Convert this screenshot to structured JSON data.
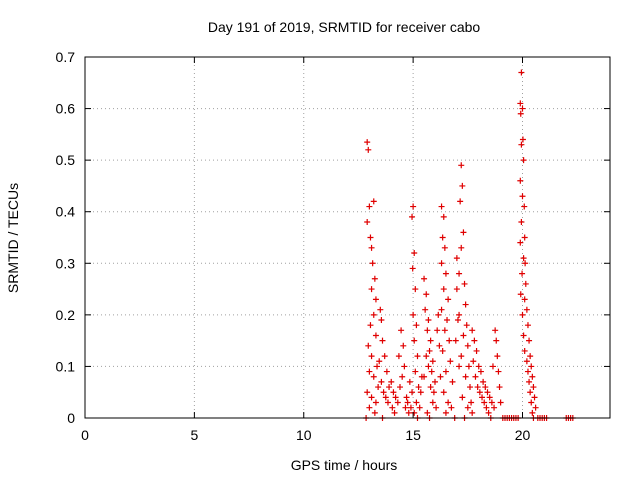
{
  "chart_data": {
    "type": "scatter",
    "title": "Day 191 of 2019, SRMTID for receiver cabo",
    "xlabel": "GPS time / hours",
    "ylabel": "SRMTID / TECUs",
    "xlim": [
      0,
      24
    ],
    "ylim": [
      0,
      0.7
    ],
    "x_ticks": [
      0,
      5,
      10,
      15,
      20
    ],
    "y_ticks": [
      0,
      0.1,
      0.2,
      0.3,
      0.4,
      0.5,
      0.6,
      0.7
    ],
    "x_tick_labels": [
      "0",
      "5",
      "10",
      "15",
      "20"
    ],
    "y_tick_labels": [
      "0",
      "0.1",
      "0.2",
      "0.3",
      "0.4",
      "0.5",
      "0.6",
      "0.7"
    ],
    "grid": true,
    "marker": "plus",
    "color": "#e00000",
    "series": [
      {
        "name": "SRMTID",
        "points": [
          [
            12.9,
            0.535
          ],
          [
            12.95,
            0.52
          ],
          [
            13.0,
            0.41
          ],
          [
            12.9,
            0.38
          ],
          [
            13.05,
            0.35
          ],
          [
            13.1,
            0.33
          ],
          [
            13.2,
            0.42
          ],
          [
            13.15,
            0.3
          ],
          [
            13.25,
            0.27
          ],
          [
            13.1,
            0.25
          ],
          [
            13.3,
            0.23
          ],
          [
            13.2,
            0.2
          ],
          [
            13.05,
            0.18
          ],
          [
            13.3,
            0.16
          ],
          [
            12.95,
            0.14
          ],
          [
            13.1,
            0.12
          ],
          [
            13.35,
            0.1
          ],
          [
            13.0,
            0.09
          ],
          [
            13.2,
            0.08
          ],
          [
            13.4,
            0.06
          ],
          [
            12.9,
            0.05
          ],
          [
            13.1,
            0.04
          ],
          [
            13.3,
            0.03
          ],
          [
            13.0,
            0.02
          ],
          [
            13.25,
            0.01
          ],
          [
            12.85,
            0.0
          ],
          [
            13.5,
            0.21
          ],
          [
            13.55,
            0.19
          ],
          [
            13.6,
            0.15
          ],
          [
            13.7,
            0.12
          ],
          [
            13.45,
            0.11
          ],
          [
            13.8,
            0.09
          ],
          [
            13.55,
            0.07
          ],
          [
            13.9,
            0.06
          ],
          [
            13.65,
            0.05
          ],
          [
            13.75,
            0.04
          ],
          [
            14.0,
            0.07
          ],
          [
            14.1,
            0.05
          ],
          [
            14.2,
            0.04
          ],
          [
            13.85,
            0.03
          ],
          [
            14.05,
            0.02
          ],
          [
            14.3,
            0.03
          ],
          [
            14.15,
            0.01
          ],
          [
            13.6,
            0.0
          ],
          [
            14.4,
            0.06
          ],
          [
            14.5,
            0.08
          ],
          [
            14.35,
            0.12
          ],
          [
            14.45,
            0.17
          ],
          [
            14.55,
            0.14
          ],
          [
            14.6,
            0.1
          ],
          [
            14.7,
            0.04
          ],
          [
            14.65,
            0.02
          ],
          [
            14.8,
            0.01
          ],
          [
            14.75,
            0.03
          ],
          [
            14.9,
            0.02
          ],
          [
            14.95,
            0.05
          ],
          [
            14.85,
            0.07
          ],
          [
            15.0,
            0.41
          ],
          [
            14.95,
            0.39
          ],
          [
            15.05,
            0.32
          ],
          [
            14.98,
            0.29
          ],
          [
            15.1,
            0.25
          ],
          [
            15.0,
            0.2
          ],
          [
            15.15,
            0.18
          ],
          [
            15.05,
            0.15
          ],
          [
            15.2,
            0.12
          ],
          [
            15.1,
            0.09
          ],
          [
            15.25,
            0.06
          ],
          [
            15.15,
            0.03
          ],
          [
            15.05,
            0.01
          ],
          [
            15.3,
            0.02
          ],
          [
            15.2,
            0.0
          ],
          [
            15.35,
            0.05
          ],
          [
            15.4,
            0.08
          ],
          [
            15.5,
            0.27
          ],
          [
            15.6,
            0.24
          ],
          [
            15.55,
            0.21
          ],
          [
            15.7,
            0.19
          ],
          [
            15.65,
            0.17
          ],
          [
            15.8,
            0.15
          ],
          [
            15.75,
            0.13
          ],
          [
            15.9,
            0.11
          ],
          [
            15.85,
            0.09
          ],
          [
            16.0,
            0.07
          ],
          [
            15.95,
            0.05
          ],
          [
            15.6,
            0.12
          ],
          [
            15.7,
            0.1
          ],
          [
            15.5,
            0.08
          ],
          [
            15.8,
            0.06
          ],
          [
            15.9,
            0.03
          ],
          [
            16.05,
            0.02
          ],
          [
            15.65,
            0.01
          ],
          [
            15.75,
            0.0
          ],
          [
            16.3,
            0.41
          ],
          [
            16.4,
            0.39
          ],
          [
            16.35,
            0.35
          ],
          [
            16.45,
            0.33
          ],
          [
            16.3,
            0.3
          ],
          [
            16.5,
            0.28
          ],
          [
            16.4,
            0.25
          ],
          [
            16.6,
            0.23
          ],
          [
            16.3,
            0.21
          ],
          [
            16.55,
            0.19
          ],
          [
            16.45,
            0.17
          ],
          [
            16.65,
            0.15
          ],
          [
            16.35,
            0.13
          ],
          [
            16.7,
            0.11
          ],
          [
            16.5,
            0.09
          ],
          [
            16.8,
            0.07
          ],
          [
            16.4,
            0.05
          ],
          [
            16.6,
            0.03
          ],
          [
            16.75,
            0.02
          ],
          [
            16.5,
            0.01
          ],
          [
            16.9,
            0.0
          ],
          [
            16.2,
            0.14
          ],
          [
            16.1,
            0.17
          ],
          [
            16.15,
            0.2
          ],
          [
            16.25,
            0.08
          ],
          [
            17.0,
            0.31
          ],
          [
            17.1,
            0.28
          ],
          [
            17.2,
            0.49
          ],
          [
            17.25,
            0.45
          ],
          [
            17.15,
            0.42
          ],
          [
            17.3,
            0.36
          ],
          [
            17.2,
            0.33
          ],
          [
            17.35,
            0.26
          ],
          [
            17.4,
            0.22
          ],
          [
            17.1,
            0.2
          ],
          [
            17.45,
            0.18
          ],
          [
            17.3,
            0.16
          ],
          [
            17.5,
            0.14
          ],
          [
            17.2,
            0.12
          ],
          [
            17.55,
            0.1
          ],
          [
            17.4,
            0.08
          ],
          [
            17.6,
            0.06
          ],
          [
            17.25,
            0.04
          ],
          [
            17.65,
            0.03
          ],
          [
            17.5,
            0.02
          ],
          [
            17.7,
            0.01
          ],
          [
            17.35,
            0.0
          ],
          [
            17.0,
            0.25
          ],
          [
            17.05,
            0.19
          ],
          [
            16.95,
            0.15
          ],
          [
            17.1,
            0.1
          ],
          [
            17.7,
            0.17
          ],
          [
            17.8,
            0.15
          ],
          [
            17.9,
            0.13
          ],
          [
            17.75,
            0.11
          ],
          [
            18.0,
            0.1
          ],
          [
            17.85,
            0.08
          ],
          [
            18.1,
            0.09
          ],
          [
            17.95,
            0.06
          ],
          [
            18.2,
            0.07
          ],
          [
            18.05,
            0.05
          ],
          [
            18.3,
            0.06
          ],
          [
            18.15,
            0.04
          ],
          [
            18.4,
            0.05
          ],
          [
            18.25,
            0.03
          ],
          [
            18.5,
            0.04
          ],
          [
            18.35,
            0.02
          ],
          [
            18.6,
            0.03
          ],
          [
            18.45,
            0.01
          ],
          [
            18.7,
            0.02
          ],
          [
            18.55,
            0.0
          ],
          [
            18.8,
            0.15
          ],
          [
            18.75,
            0.17
          ],
          [
            18.85,
            0.12
          ],
          [
            18.9,
            0.09
          ],
          [
            18.65,
            0.1
          ],
          [
            18.95,
            0.06
          ],
          [
            19.0,
            0.03
          ],
          [
            19.1,
            0.0
          ],
          [
            19.2,
            0.0
          ],
          [
            19.3,
            0.0
          ],
          [
            19.4,
            0.0
          ],
          [
            19.5,
            0.0
          ],
          [
            19.6,
            0.0
          ],
          [
            19.7,
            0.0
          ],
          [
            19.8,
            0.0
          ],
          [
            19.9,
            0.61
          ],
          [
            19.95,
            0.67
          ],
          [
            20.0,
            0.6
          ],
          [
            19.92,
            0.59
          ],
          [
            20.02,
            0.54
          ],
          [
            19.95,
            0.53
          ],
          [
            20.05,
            0.5
          ],
          [
            19.9,
            0.46
          ],
          [
            20.0,
            0.43
          ],
          [
            20.08,
            0.41
          ],
          [
            19.95,
            0.38
          ],
          [
            20.1,
            0.35
          ],
          [
            19.9,
            0.34
          ],
          [
            20.05,
            0.31
          ],
          [
            20.12,
            0.3
          ],
          [
            19.98,
            0.28
          ],
          [
            20.15,
            0.26
          ],
          [
            19.92,
            0.24
          ],
          [
            20.1,
            0.23
          ],
          [
            20.2,
            0.21
          ],
          [
            20.0,
            0.2
          ],
          [
            20.25,
            0.18
          ],
          [
            20.05,
            0.16
          ],
          [
            20.3,
            0.15
          ],
          [
            20.1,
            0.13
          ],
          [
            20.35,
            0.12
          ],
          [
            20.2,
            0.11
          ],
          [
            20.4,
            0.1
          ],
          [
            20.25,
            0.09
          ],
          [
            20.45,
            0.08
          ],
          [
            20.3,
            0.07
          ],
          [
            20.5,
            0.06
          ],
          [
            20.35,
            0.05
          ],
          [
            20.55,
            0.04
          ],
          [
            20.4,
            0.03
          ],
          [
            20.6,
            0.02
          ],
          [
            20.45,
            0.01
          ],
          [
            20.5,
            0.0
          ],
          [
            20.7,
            0.0
          ],
          [
            20.8,
            0.0
          ],
          [
            20.9,
            0.0
          ],
          [
            21.0,
            0.0
          ],
          [
            21.1,
            0.0
          ],
          [
            22.0,
            0.0
          ],
          [
            22.1,
            0.0
          ],
          [
            22.2,
            0.0
          ],
          [
            22.3,
            0.0
          ]
        ]
      }
    ]
  }
}
